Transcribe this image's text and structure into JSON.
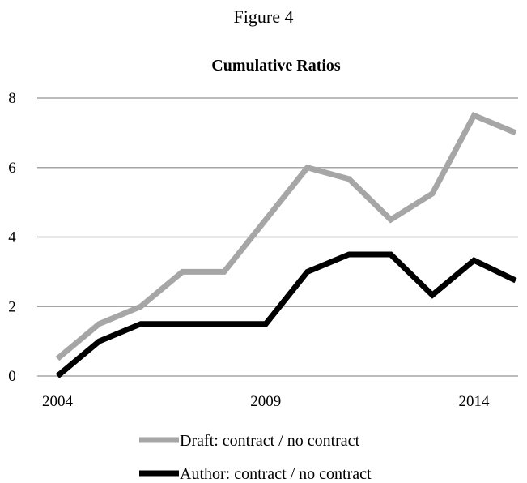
{
  "figure_caption": "Figure 4",
  "chart_data": {
    "type": "line",
    "title": "Cumulative Ratios",
    "xlabel": "",
    "ylabel": "",
    "x": [
      2004,
      2005,
      2006,
      2007,
      2008,
      2009,
      2010,
      2011,
      2012,
      2013,
      2014,
      2015
    ],
    "x_tick_labels": [
      "2004",
      "2009",
      "2014"
    ],
    "x_tick_values": [
      2004,
      2009,
      2014
    ],
    "y_tick_labels": [
      "0",
      "2",
      "4",
      "6",
      "8"
    ],
    "y_tick_values": [
      0,
      2,
      4,
      6,
      8
    ],
    "ylim": [
      0,
      8
    ],
    "grid": "horizontal",
    "legend_placement": "bottom",
    "series": [
      {
        "name": "Draft: contract / no contract",
        "color": "#a6a6a6",
        "values": [
          0.5,
          1.5,
          2.0,
          3.0,
          3.0,
          4.5,
          6.0,
          5.67,
          4.5,
          5.25,
          7.5,
          7.0
        ]
      },
      {
        "name": "Author: contract / no contract",
        "color": "#000000",
        "values": [
          0.0,
          1.0,
          1.5,
          1.5,
          1.5,
          1.5,
          3.0,
          3.5,
          3.5,
          2.33,
          3.33,
          2.75
        ]
      }
    ]
  }
}
